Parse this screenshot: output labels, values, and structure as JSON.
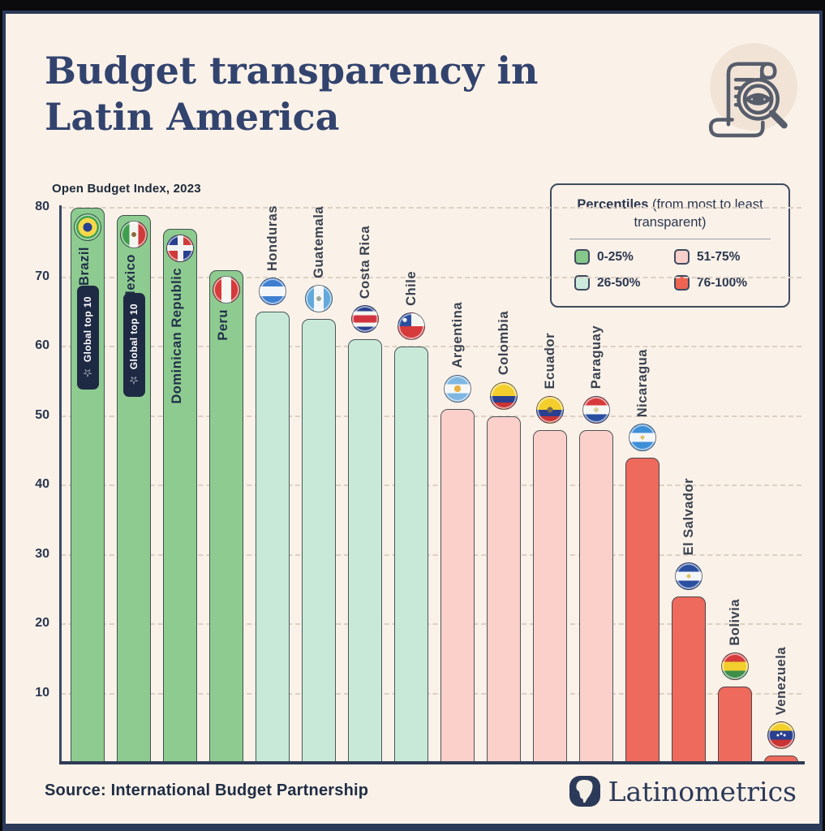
{
  "page": {
    "background": "#0b0b0d",
    "card_background": "#faf1e8",
    "frame_color": "#2c3a59"
  },
  "header": {
    "title_lines": [
      "Budget transparency in",
      "Latin America"
    ],
    "subtitle": "Open Budget Index, 2023",
    "decorative_icon": "budget-scroll-magnifier-icon"
  },
  "legend": {
    "title_bold": "Percentiles",
    "title_rest": " (from most to least transparent)",
    "items": [
      {
        "label": "0-25%",
        "color": "#85c88a"
      },
      {
        "label": "51-75%",
        "color": "#f8cfca"
      },
      {
        "label": "26-50%",
        "color": "#cdebdc"
      },
      {
        "label": "76-100%",
        "color": "#ee6352"
      }
    ]
  },
  "chart_data": {
    "type": "bar",
    "title": "Open Budget Index, 2023",
    "xlabel": "",
    "ylabel": "",
    "ylim": [
      0,
      80
    ],
    "yticks": [
      10,
      20,
      30,
      40,
      50,
      60,
      70,
      80
    ],
    "grid": "horizontal-dashed",
    "legend_position": "top-right",
    "categories": [
      "Brazil",
      "Mexico",
      "Dominican Republic",
      "Peru",
      "Honduras",
      "Guatemala",
      "Costa Rica",
      "Chile",
      "Argentina",
      "Colombia",
      "Ecuador",
      "Paraguay",
      "Nicaragua",
      "El Salvador",
      "Bolivia",
      "Venezuela"
    ],
    "values": [
      80,
      79,
      77,
      71,
      65,
      64,
      61,
      60,
      51,
      50,
      48,
      48,
      44,
      24,
      11,
      1
    ],
    "percentile_groups": [
      "0-25%",
      "0-25%",
      "0-25%",
      "0-25%",
      "26-50%",
      "26-50%",
      "26-50%",
      "26-50%",
      "51-75%",
      "51-75%",
      "51-75%",
      "51-75%",
      "76-100%",
      "76-100%",
      "76-100%",
      "76-100%"
    ],
    "group_colors": {
      "0-25%": "#8ecb90",
      "26-50%": "#c9e9d8",
      "51-75%": "#fbd0cb",
      "76-100%": "#ee6a5c"
    },
    "badges": [
      {
        "country": "Brazil",
        "label": "Global top 10"
      },
      {
        "country": "Mexico",
        "label": "Global top 10"
      }
    ],
    "flag_icons": [
      "brazil-flag-icon",
      "mexico-flag-icon",
      "dominican-republic-flag-icon",
      "peru-flag-icon",
      "honduras-flag-icon",
      "guatemala-flag-icon",
      "costa-rica-flag-icon",
      "chile-flag-icon",
      "argentina-flag-icon",
      "colombia-flag-icon",
      "ecuador-flag-icon",
      "paraguay-flag-icon",
      "nicaragua-flag-icon",
      "el-salvador-flag-icon",
      "bolivia-flag-icon",
      "venezuela-flag-icon"
    ]
  },
  "footer": {
    "source": "Source: International Budget Partnership",
    "brand": "Latinometrics",
    "brand_icon": "latinometrics-globe-icon"
  }
}
